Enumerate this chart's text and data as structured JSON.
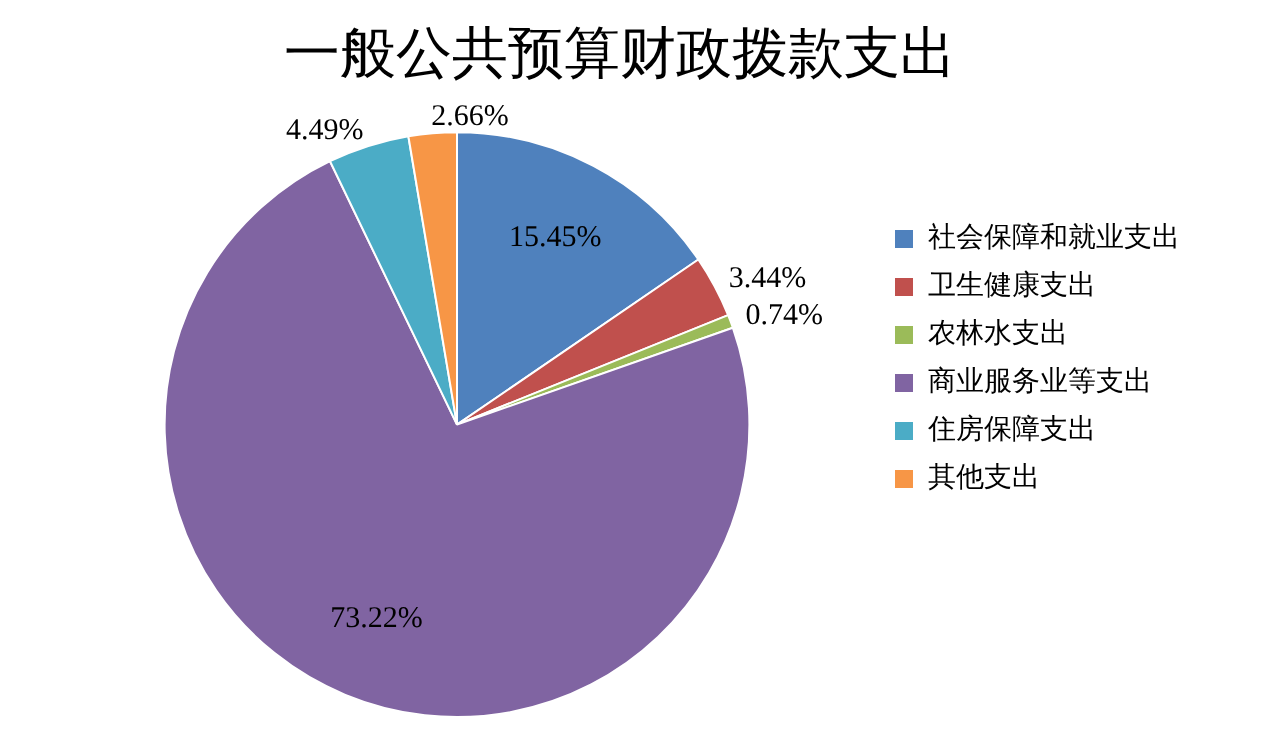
{
  "chart_data": {
    "type": "pie",
    "title": "一般公共预算财政拨款支出",
    "categories": [
      "社会保障和就业支出",
      "卫生健康支出",
      "农林水支出",
      "商业服务业等支出",
      "住房保障支出",
      "其他支出"
    ],
    "values": [
      15.45,
      3.44,
      0.74,
      73.22,
      4.49,
      2.66
    ],
    "colors": [
      "#4f81bd",
      "#c0504d",
      "#9bbb59",
      "#8064a2",
      "#4bacc6",
      "#f79646"
    ],
    "value_labels": [
      "15.45%",
      "3.44%",
      "0.74%",
      "73.22%",
      "4.49%",
      "2.66%"
    ],
    "legend": "right"
  }
}
